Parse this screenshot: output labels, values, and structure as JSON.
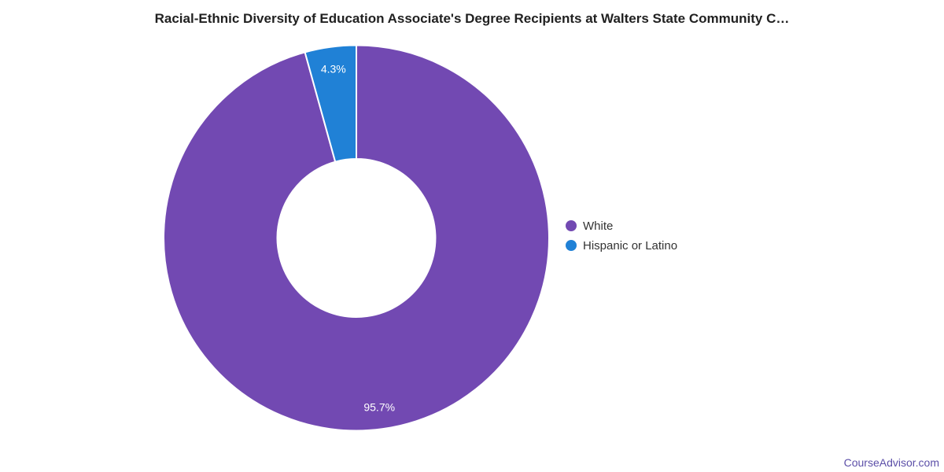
{
  "chart_data": {
    "type": "pie",
    "subtype": "donut",
    "title": "Racial-Ethnic Diversity of Education Associate's Degree Recipients at Walters State Community C…",
    "categories": [
      "White",
      "Hispanic or Latino"
    ],
    "values": [
      95.7,
      4.3
    ],
    "slice_labels": [
      "95.7%",
      "4.3%"
    ],
    "colors": [
      "#7249b2",
      "#2081d6"
    ],
    "slice_border_color": "#ffffff",
    "start_angle_deg": 0,
    "direction": "clockwise",
    "inner_radius_ratio": 0.41,
    "grid": false,
    "legend_position": "right",
    "legend": [
      {
        "label": "White",
        "color": "#7249b2"
      },
      {
        "label": "Hispanic or Latino",
        "color": "#2081d6"
      }
    ]
  },
  "footer": {
    "watermark": "CourseAdvisor.com",
    "watermark_color": "#5c4fa8"
  }
}
